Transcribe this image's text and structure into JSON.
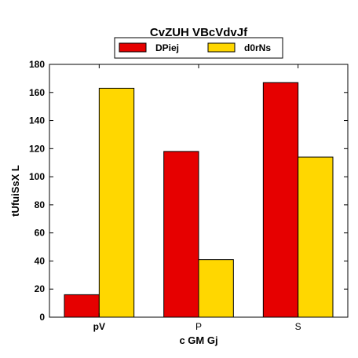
{
  "chart_data": {
    "type": "bar",
    "title": "CvZUH VBcVdvJf",
    "xlabel": "c GM Gj",
    "ylabel": "tUfuiSsX L",
    "categories": [
      "pV",
      "P",
      "S"
    ],
    "series": [
      {
        "name": "DPiej",
        "color": "#e60000",
        "values": [
          16,
          118,
          167
        ]
      },
      {
        "name": "d0rNs",
        "color": "#ffd700",
        "values": [
          163,
          41,
          114
        ]
      }
    ],
    "ylim": [
      0,
      180
    ],
    "yticks": [
      0,
      20,
      40,
      60,
      80,
      100,
      120,
      140,
      160,
      180
    ],
    "grid": false,
    "legend_position": "top-center"
  }
}
